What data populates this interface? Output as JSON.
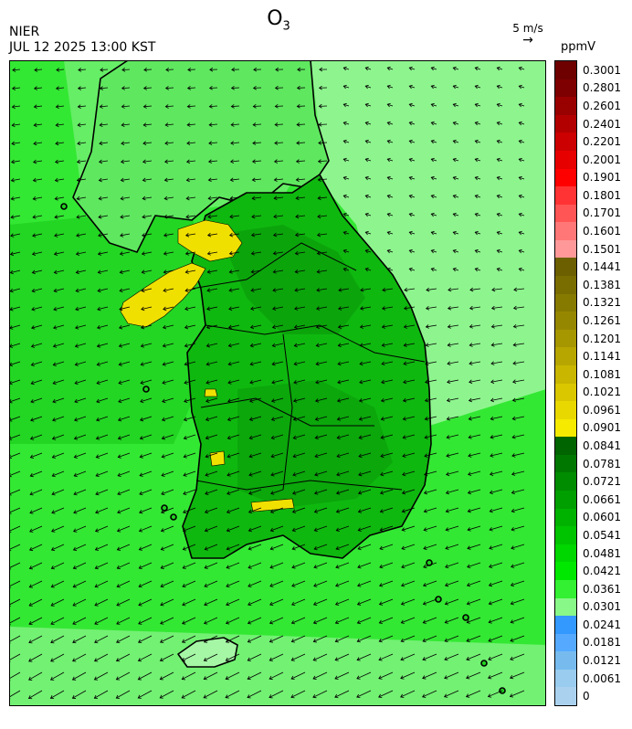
{
  "header": {
    "title_base": "O",
    "title_sub": "3",
    "agency": "NIER",
    "datetime": "JUL 12 2025 13:00 KST",
    "wind_scale_label": "5 m/s",
    "units": "ppmV"
  },
  "legend": {
    "labels": [
      "0.3001",
      "0.2801",
      "0.2601",
      "0.2401",
      "0.2201",
      "0.2001",
      "0.1901",
      "0.1801",
      "0.1701",
      "0.1601",
      "0.1501",
      "0.1441",
      "0.1381",
      "0.1321",
      "0.1261",
      "0.1201",
      "0.1141",
      "0.1081",
      "0.1021",
      "0.0961",
      "0.0901",
      "0.0841",
      "0.0781",
      "0.0721",
      "0.0661",
      "0.0601",
      "0.0541",
      "0.0481",
      "0.0421",
      "0.0361",
      "0.0301",
      "0.0241",
      "0.0181",
      "0.0121",
      "0.0061",
      "0"
    ],
    "colors": [
      "#6e0000",
      "#7f0000",
      "#990000",
      "#b20000",
      "#cc0000",
      "#e60000",
      "#ff0000",
      "#ff3333",
      "#ff5555",
      "#ff7777",
      "#ff9999",
      "#6b5f00",
      "#7a6d00",
      "#877a00",
      "#968700",
      "#a69600",
      "#b8a600",
      "#c9b600",
      "#dac700",
      "#e9d800",
      "#f5ea00",
      "#006400",
      "#007800",
      "#008c00",
      "#009f00",
      "#00b200",
      "#00c400",
      "#00d600",
      "#00e800",
      "#33f033",
      "#88f888",
      "#3399ff",
      "#55aaff",
      "#77bbee",
      "#99ccee",
      "#aad2ee"
    ]
  },
  "map": {
    "colors": {
      "sea_light": "#8ef58e",
      "sea_mid": "#33e833",
      "land_mid": "#1fd11f",
      "land_dark": "#0fb80f",
      "land_darker": "#0aa00a",
      "hotspot": "#f0e000",
      "jeju_light": "#a5f7a5",
      "boundary": "#000000"
    }
  }
}
